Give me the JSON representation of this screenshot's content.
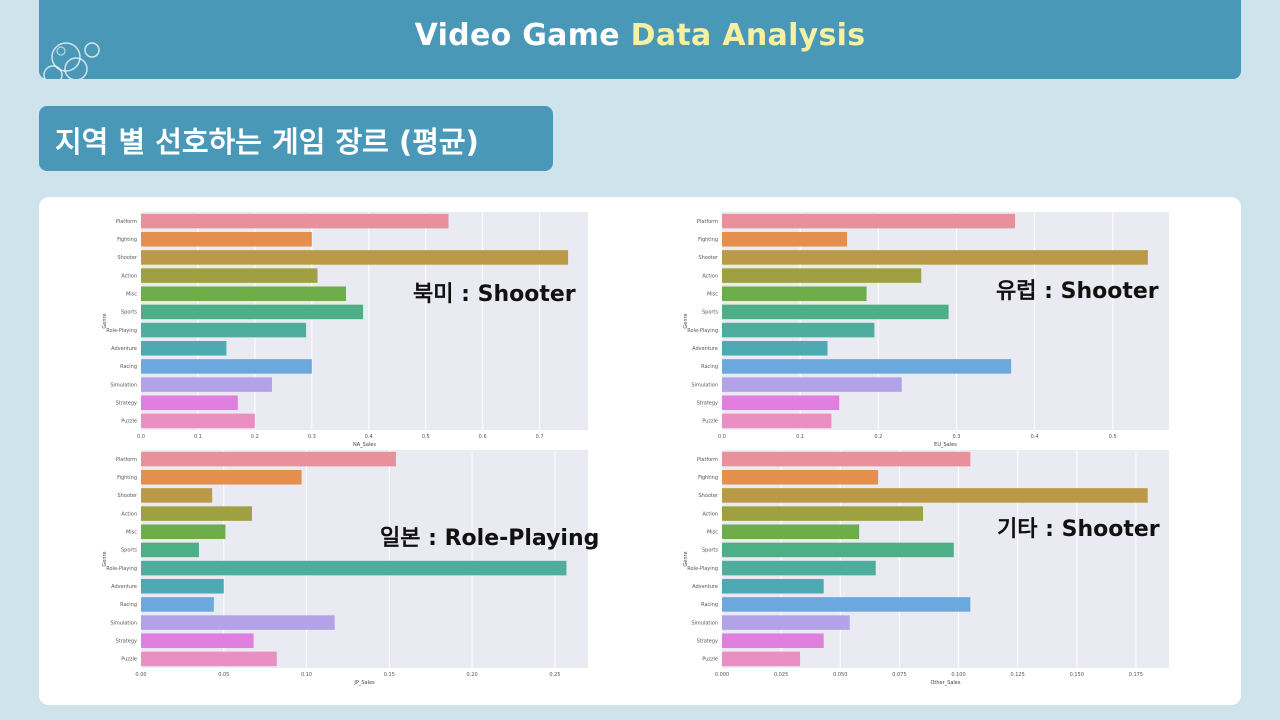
{
  "header": {
    "title_plain": "Video Game",
    "title_highlight": "Data Analysis"
  },
  "subtitle": "지역 별 선호하는 게임 장르 (평균)",
  "colors": {
    "banner": "#4a98b8",
    "highlight": "#f7f0a3",
    "plot_bg": "#eaeaf2"
  },
  "chart_data": [
    {
      "type": "bar",
      "orientation": "horizontal",
      "ylabel": "Genre",
      "xlabel": "NA_Sales",
      "categories": [
        "Platform",
        "Fighting",
        "Shooter",
        "Action",
        "Misc",
        "Sports",
        "Role-Playing",
        "Adventure",
        "Racing",
        "Simulation",
        "Strategy",
        "Puzzle"
      ],
      "values": [
        0.54,
        0.3,
        0.75,
        0.31,
        0.36,
        0.39,
        0.29,
        0.15,
        0.3,
        0.23,
        0.17,
        0.2
      ],
      "xlim": [
        0,
        0.785
      ],
      "xticks": [
        "0.0",
        "0.1",
        "0.2",
        "0.3",
        "0.4",
        "0.5",
        "0.6",
        "0.7"
      ],
      "tick_values": [
        0,
        0.1,
        0.2,
        0.3,
        0.4,
        0.5,
        0.6,
        0.7
      ],
      "annotation": "북미 : Shooter"
    },
    {
      "type": "bar",
      "orientation": "horizontal",
      "ylabel": "Genre",
      "xlabel": "EU_Sales",
      "categories": [
        "Platform",
        "Fighting",
        "Shooter",
        "Action",
        "Misc",
        "Sports",
        "Role-Playing",
        "Adventure",
        "Racing",
        "Simulation",
        "Strategy",
        "Puzzle"
      ],
      "values": [
        0.375,
        0.16,
        0.545,
        0.255,
        0.185,
        0.29,
        0.195,
        0.135,
        0.37,
        0.23,
        0.15,
        0.14
      ],
      "xlim": [
        0,
        0.572
      ],
      "xticks": [
        "0.0",
        "0.1",
        "0.2",
        "0.3",
        "0.4",
        "0.5"
      ],
      "tick_values": [
        0,
        0.1,
        0.2,
        0.3,
        0.4,
        0.5
      ],
      "annotation": "유럽 : Shooter"
    },
    {
      "type": "bar",
      "orientation": "horizontal",
      "ylabel": "Genre",
      "xlabel": "JP_Sales",
      "categories": [
        "Platform",
        "Fighting",
        "Shooter",
        "Action",
        "Misc",
        "Sports",
        "Role-Playing",
        "Adventure",
        "Racing",
        "Simulation",
        "Strategy",
        "Puzzle"
      ],
      "values": [
        0.154,
        0.097,
        0.043,
        0.067,
        0.051,
        0.035,
        0.257,
        0.05,
        0.044,
        0.117,
        0.068,
        0.082
      ],
      "xlim": [
        0,
        0.27
      ],
      "xticks": [
        "0.00",
        "0.05",
        "0.10",
        "0.15",
        "0.20",
        "0.25"
      ],
      "tick_values": [
        0,
        0.05,
        0.1,
        0.15,
        0.2,
        0.25
      ],
      "annotation": "일본 : Role-Playing"
    },
    {
      "type": "bar",
      "orientation": "horizontal",
      "ylabel": "Genre",
      "xlabel": "Other_Sales",
      "categories": [
        "Platform",
        "Fighting",
        "Shooter",
        "Action",
        "Misc",
        "Sports",
        "Role-Playing",
        "Adventure",
        "Racing",
        "Simulation",
        "Strategy",
        "Puzzle"
      ],
      "values": [
        0.105,
        0.066,
        0.18,
        0.085,
        0.058,
        0.098,
        0.065,
        0.043,
        0.105,
        0.054,
        0.043,
        0.033
      ],
      "xlim": [
        0,
        0.189
      ],
      "xticks": [
        "0.000",
        "0.025",
        "0.050",
        "0.075",
        "0.100",
        "0.125",
        "0.150",
        "0.175"
      ],
      "tick_values": [
        0,
        0.025,
        0.05,
        0.075,
        0.1,
        0.125,
        0.15,
        0.175
      ],
      "annotation": "기타 : Shooter"
    }
  ],
  "bar_colors": [
    "#e8919d",
    "#e58f4e",
    "#bb9a47",
    "#9fa042",
    "#6dae4b",
    "#4daf85",
    "#4fad9d",
    "#4eaab2",
    "#6ba8dd",
    "#b3a2e7",
    "#e17fdf",
    "#ea8fc2"
  ]
}
